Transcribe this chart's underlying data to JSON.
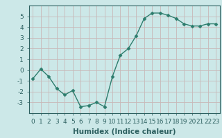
{
  "x": [
    0,
    1,
    2,
    3,
    4,
    5,
    6,
    7,
    8,
    9,
    10,
    11,
    12,
    13,
    14,
    15,
    16,
    17,
    18,
    19,
    20,
    21,
    22,
    23
  ],
  "y": [
    -0.8,
    0.1,
    -0.6,
    -1.7,
    -2.3,
    -1.9,
    -3.4,
    -3.3,
    -3.0,
    -3.4,
    -0.6,
    1.4,
    2.0,
    3.2,
    4.8,
    5.3,
    5.3,
    5.1,
    4.8,
    4.3,
    4.1,
    4.1,
    4.3,
    4.3
  ],
  "line_color": "#2d7d6d",
  "marker": "D",
  "marker_size": 2.5,
  "bg_color": "#cce8e8",
  "grid_color": "#c8b8b8",
  "xlabel": "Humidex (Indice chaleur)",
  "xlim": [
    -0.5,
    23.5
  ],
  "ylim": [
    -4,
    6
  ],
  "yticks": [
    -3,
    -2,
    -1,
    0,
    1,
    2,
    3,
    4,
    5
  ],
  "xtick_labels": [
    "0",
    "1",
    "2",
    "3",
    "4",
    "5",
    "6",
    "7",
    "8",
    "9",
    "10",
    "11",
    "12",
    "13",
    "14",
    "15",
    "16",
    "17",
    "18",
    "19",
    "20",
    "21",
    "22",
    "23"
  ],
  "tick_fontsize": 6.5,
  "xlabel_fontsize": 7.5,
  "tick_color": "#2d6060",
  "label_color": "#2d6060"
}
